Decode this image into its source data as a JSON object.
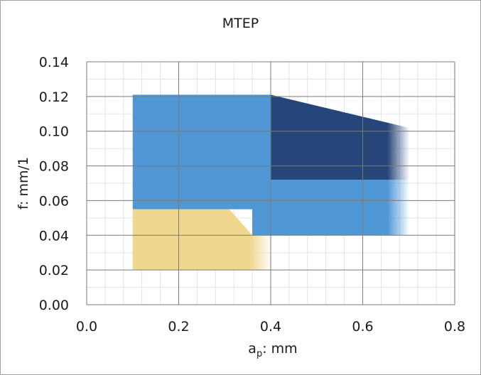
{
  "chart_data": {
    "type": "area",
    "title": "MTEP",
    "xlabel": "mm",
    "xlabel_prefix": "a",
    "xlabel_sub": "p",
    "ylabel": "f: mm/1",
    "xlim": [
      0.0,
      0.8
    ],
    "ylim": [
      0.0,
      0.14
    ],
    "x_ticks": [
      0.0,
      0.2,
      0.4,
      0.6,
      0.8
    ],
    "x_tick_labels": [
      "0.0",
      "0.2",
      "0.4",
      "0.6",
      "0.8"
    ],
    "y_ticks": [
      0.0,
      0.02,
      0.04,
      0.06,
      0.08,
      0.1,
      0.12,
      0.14
    ],
    "y_tick_labels": [
      "0.00",
      "0.02",
      "0.04",
      "0.06",
      "0.08",
      "0.10",
      "0.12",
      "0.14"
    ],
    "grid": true,
    "minor_grid": true,
    "regions": [
      {
        "id": "light-blue-region",
        "color": "#4f97d5",
        "fade_out_right": true,
        "points": [
          [
            0.1,
            0.121
          ],
          [
            0.4,
            0.121
          ],
          [
            0.4,
            0.072
          ],
          [
            0.7,
            0.072
          ],
          [
            0.7,
            0.04
          ],
          [
            0.36,
            0.04
          ],
          [
            0.36,
            0.055
          ],
          [
            0.1,
            0.055
          ]
        ]
      },
      {
        "id": "dark-blue-region",
        "color": "#26467a",
        "fade_out_right": true,
        "points": [
          [
            0.4,
            0.121
          ],
          [
            0.7,
            0.102
          ],
          [
            0.7,
            0.072
          ],
          [
            0.4,
            0.072
          ]
        ]
      },
      {
        "id": "yellow-region",
        "color": "#f0d78e",
        "fade_out_right": true,
        "points": [
          [
            0.1,
            0.055
          ],
          [
            0.31,
            0.055
          ],
          [
            0.36,
            0.04
          ],
          [
            0.4,
            0.04
          ],
          [
            0.4,
            0.02
          ],
          [
            0.1,
            0.02
          ]
        ]
      }
    ]
  }
}
